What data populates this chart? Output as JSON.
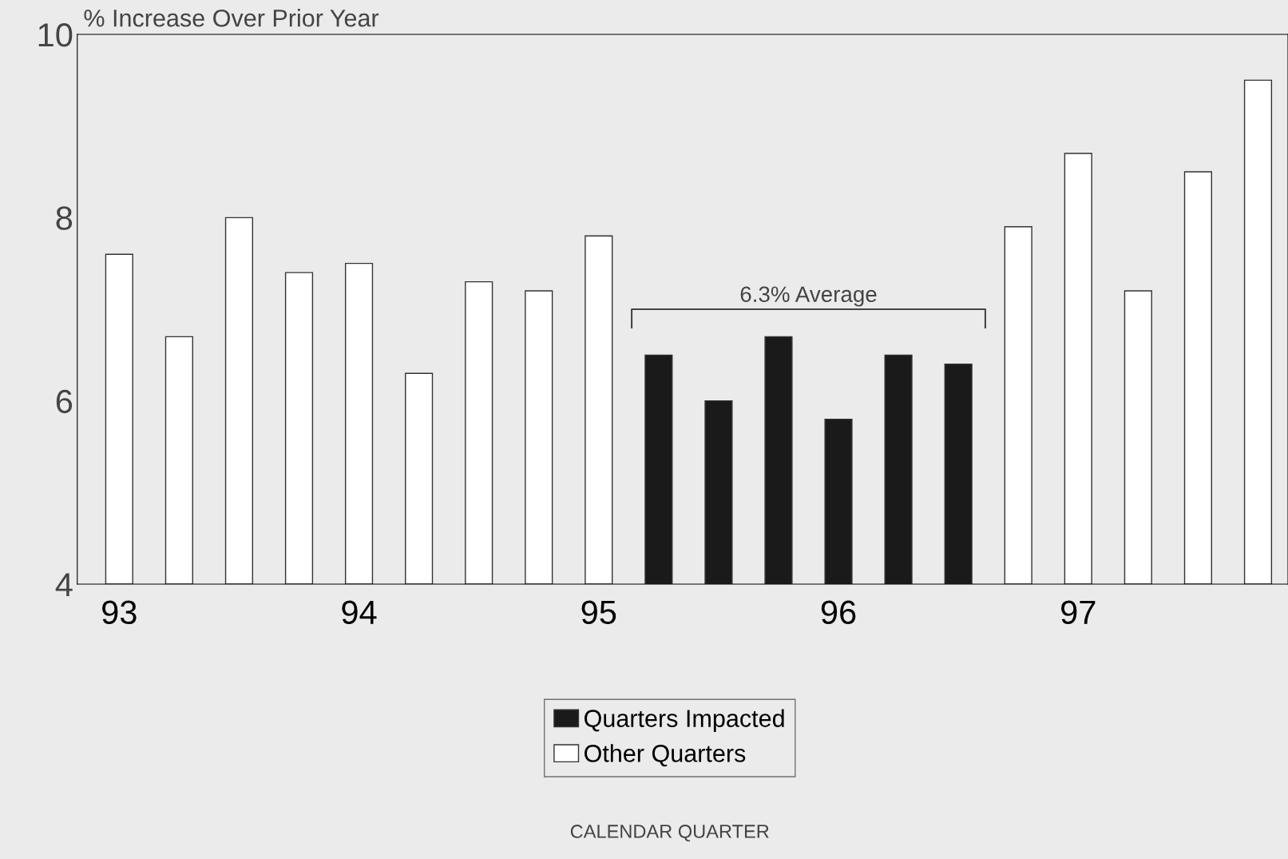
{
  "chart_data": {
    "type": "bar",
    "ylabel": "% Increase Over Prior Year",
    "categories": [
      "93",
      null,
      null,
      null,
      "94",
      null,
      null,
      null,
      "95",
      null,
      null,
      null,
      "96",
      null,
      null,
      null,
      "97",
      null,
      null,
      null
    ],
    "series": [
      {
        "name": "Quarters Impacted",
        "color": "#1a1a1a",
        "values": [
          null,
          null,
          null,
          null,
          null,
          null,
          null,
          null,
          null,
          6.5,
          6.0,
          6.7,
          5.8,
          6.5,
          6.4,
          null,
          null,
          null,
          null,
          null
        ]
      },
      {
        "name": "Other Quarters",
        "color": "#ffffff",
        "values": [
          7.6,
          6.7,
          8.0,
          7.4,
          7.5,
          6.3,
          7.3,
          7.2,
          7.8,
          null,
          null,
          null,
          null,
          null,
          null,
          7.9,
          8.7,
          7.2,
          8.5,
          9.5
        ]
      }
    ],
    "annotations": [
      "6.3% Average",
      "CALENDAR QUARTER"
    ],
    "ylim": [
      4,
      10
    ],
    "yticks": [
      4,
      6,
      8,
      10
    ],
    "grid": false,
    "legend": "bottom"
  }
}
